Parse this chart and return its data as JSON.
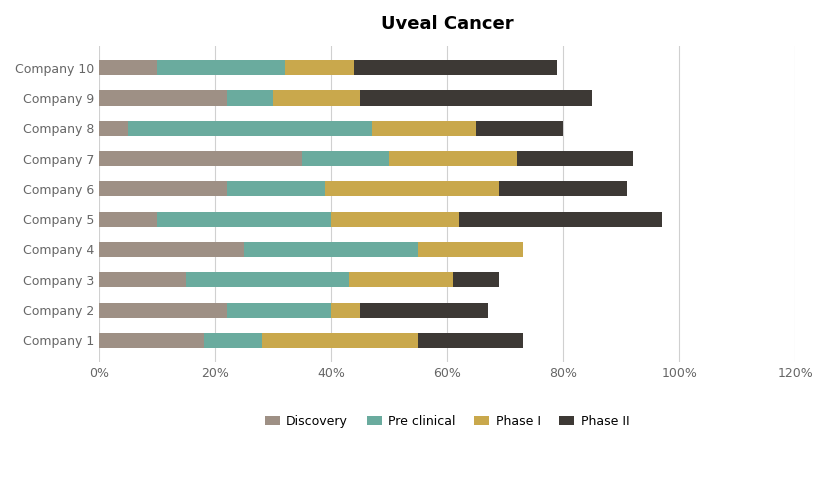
{
  "title": "Uveal Cancer",
  "categories": [
    "Company 1",
    "Company 2",
    "Company 3",
    "Company 4",
    "Company 5",
    "Company 6",
    "Company 7",
    "Company 8",
    "Company 9",
    "Company 10"
  ],
  "segments": {
    "Discovery": [
      0.18,
      0.22,
      0.15,
      0.25,
      0.1,
      0.22,
      0.35,
      0.05,
      0.22,
      0.1
    ],
    "Pre clinical": [
      0.1,
      0.18,
      0.28,
      0.3,
      0.3,
      0.17,
      0.15,
      0.42,
      0.08,
      0.22
    ],
    "Phase I": [
      0.27,
      0.05,
      0.18,
      0.18,
      0.22,
      0.3,
      0.22,
      0.18,
      0.15,
      0.12
    ],
    "Phase II": [
      0.18,
      0.22,
      0.08,
      0.0,
      0.35,
      0.22,
      0.2,
      0.15,
      0.4,
      0.35
    ]
  },
  "colors": {
    "Discovery": "#9e9085",
    "Pre clinical": "#6aab9e",
    "Phase I": "#c9a84c",
    "Phase II": "#3d3935"
  },
  "legend_labels": [
    "Discovery",
    "Pre clinical",
    "Phase I",
    "Phase II"
  ],
  "xlim": [
    0,
    1.2
  ],
  "xtick_values": [
    0.0,
    0.2,
    0.4,
    0.6,
    0.8,
    1.0,
    1.2
  ],
  "xtick_labels": [
    "0%",
    "20%",
    "40%",
    "60%",
    "80%",
    "100%",
    "120%"
  ],
  "background_color": "#ffffff",
  "title_fontsize": 13,
  "tick_fontsize": 9,
  "legend_fontsize": 9,
  "bar_height": 0.5,
  "grid_color": "#d0d0d0",
  "tick_color": "#666666"
}
